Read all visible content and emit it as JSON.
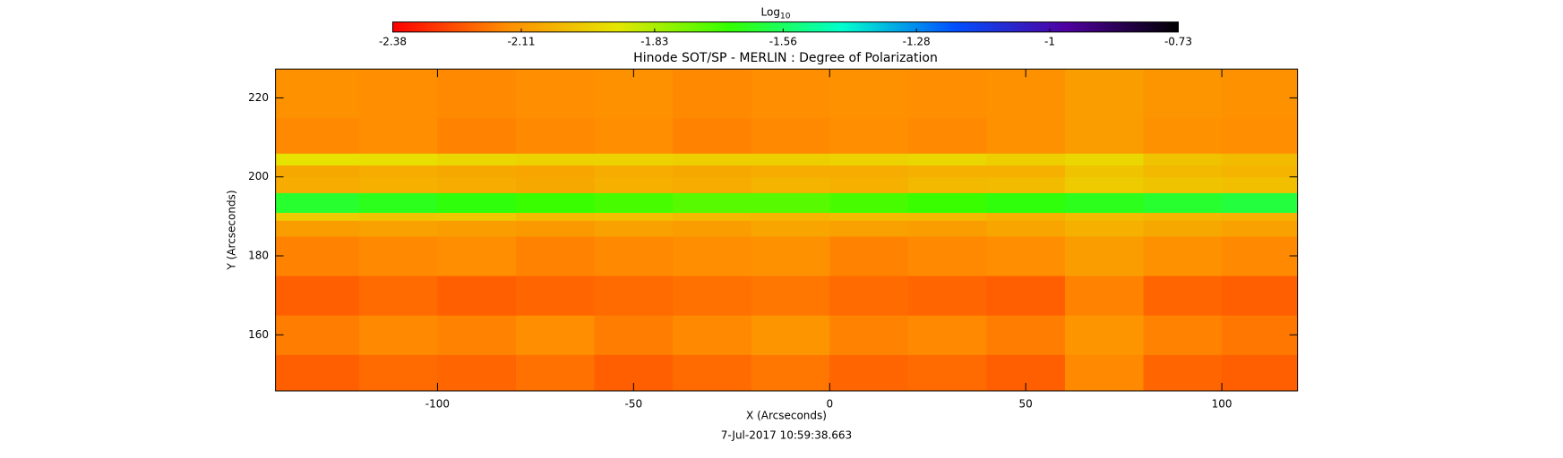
{
  "chart_data": {
    "type": "heatmap",
    "title": "Hinode SOT/SP - MERLIN : Degree of Polarization",
    "x_label": "X (Arcseconds)",
    "y_label": "Y (Arcseconds)",
    "footer": "7-Jul-2017 10:59:38.663",
    "colorbar_label": "Log",
    "colorbar_label_subscript": "10",
    "colorbar_ticks": [
      -2.38,
      -2.11,
      -1.83,
      -1.56,
      -1.28,
      -1.0,
      -0.73
    ],
    "colormap": [
      "#ff0000",
      "#ff8c00",
      "#e6e600",
      "#33ff00",
      "#00ffcc",
      "#0050ff",
      "#5000a0",
      "#000000"
    ],
    "xlim": [
      -141.3,
      119.3
    ],
    "ylim": [
      145.8,
      227.3
    ],
    "xticks": [
      -100,
      -50,
      0,
      50,
      100
    ],
    "yticks": [
      160,
      180,
      200,
      220
    ],
    "xbins": [
      -141.3,
      -120,
      -100,
      -80,
      -60,
      -40,
      -20,
      0,
      20,
      40,
      60,
      80,
      100,
      119.3
    ],
    "ybins": [
      145.8,
      155,
      165,
      175,
      185,
      189,
      191,
      196,
      200,
      203,
      206,
      215,
      227.3
    ],
    "z": [
      [
        -2.22,
        -2.2,
        -2.21,
        -2.19,
        -2.22,
        -2.2,
        -2.18,
        -2.21,
        -2.2,
        -2.22,
        -2.15,
        -2.21,
        -2.22
      ],
      [
        -2.17,
        -2.15,
        -2.16,
        -2.14,
        -2.17,
        -2.15,
        -2.12,
        -2.16,
        -2.15,
        -2.17,
        -2.12,
        -2.16,
        -2.18
      ],
      [
        -2.22,
        -2.2,
        -2.22,
        -2.21,
        -2.2,
        -2.19,
        -2.18,
        -2.2,
        -2.21,
        -2.22,
        -2.16,
        -2.21,
        -2.22
      ],
      [
        -2.16,
        -2.15,
        -2.14,
        -2.16,
        -2.15,
        -2.14,
        -2.13,
        -2.16,
        -2.15,
        -2.14,
        -2.1,
        -2.13,
        -2.15
      ],
      [
        -2.1,
        -2.09,
        -2.1,
        -2.11,
        -2.09,
        -2.1,
        -2.08,
        -2.09,
        -2.1,
        -2.08,
        -2.05,
        -2.07,
        -2.09
      ],
      [
        -1.98,
        -2.0,
        -1.99,
        -2.02,
        -2.01,
        -2.03,
        -2.04,
        -2.02,
        -2.03,
        -2.05,
        -2.02,
        -2.04,
        -2.05
      ],
      [
        -1.62,
        -1.64,
        -1.66,
        -1.68,
        -1.7,
        -1.72,
        -1.72,
        -1.7,
        -1.68,
        -1.66,
        -1.64,
        -1.62,
        -1.6
      ],
      [
        -2.06,
        -2.05,
        -2.06,
        -2.07,
        -2.05,
        -2.06,
        -2.04,
        -2.05,
        -2.03,
        -2.02,
        -1.98,
        -2.0,
        -2.01
      ],
      [
        -2.07,
        -2.06,
        -2.07,
        -2.08,
        -2.06,
        -2.07,
        -2.06,
        -2.06,
        -2.05,
        -2.05,
        -2.0,
        -2.03,
        -2.04
      ],
      [
        -1.92,
        -1.93,
        -1.95,
        -1.96,
        -1.96,
        -1.97,
        -1.97,
        -1.96,
        -1.95,
        -1.97,
        -1.95,
        -2.0,
        -2.02
      ],
      [
        -2.15,
        -2.14,
        -2.16,
        -2.15,
        -2.14,
        -2.16,
        -2.15,
        -2.14,
        -2.15,
        -2.13,
        -2.1,
        -2.13,
        -2.14
      ],
      [
        -2.13,
        -2.14,
        -2.15,
        -2.14,
        -2.13,
        -2.15,
        -2.14,
        -2.13,
        -2.14,
        -2.13,
        -2.1,
        -2.12,
        -2.13
      ]
    ]
  }
}
